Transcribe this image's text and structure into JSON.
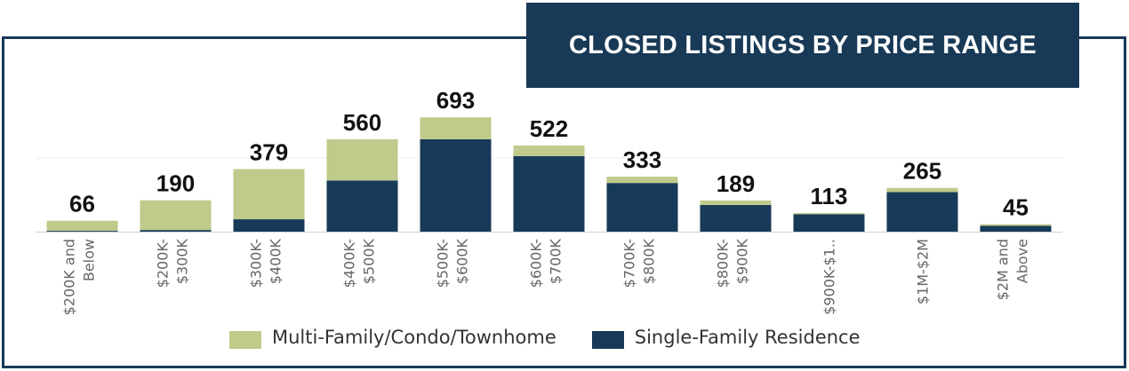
{
  "title": "CLOSED LISTINGS BY PRICE RANGE",
  "colors": {
    "frame": "#193a57",
    "multi": "#bfca8b",
    "single": "#163a58",
    "grid": "#eeeeee",
    "axis": "#d0d0d0",
    "label": "#666666"
  },
  "legend": [
    {
      "name": "Multi-Family/Condo/Townhome",
      "color": "#bfca8b"
    },
    {
      "name": "Single-Family Residence",
      "color": "#163a58"
    }
  ],
  "chart_data": {
    "type": "bar",
    "stacked": true,
    "title": "CLOSED LISTINGS BY PRICE RANGE",
    "categories": [
      [
        "$200K and",
        "Below"
      ],
      [
        "$200K-",
        "$300K"
      ],
      [
        "$300K-",
        "$400K"
      ],
      [
        "$400K-",
        "$500K"
      ],
      [
        "$500K-",
        "$600K"
      ],
      [
        "$600K-",
        "$700K"
      ],
      [
        "$700K-",
        "$800K"
      ],
      [
        "$800K-",
        "$900K"
      ],
      [
        "$900K-$1.."
      ],
      [
        "$1M-$2M"
      ],
      [
        "$2M and",
        "Above"
      ]
    ],
    "totals": [
      66,
      190,
      379,
      560,
      693,
      522,
      333,
      189,
      113,
      265,
      45
    ],
    "series": [
      {
        "name": "Single-Family Residence",
        "values": [
          5,
          10,
          75,
          310,
          560,
          458,
          295,
          162,
          105,
          240,
          35
        ]
      },
      {
        "name": "Multi-Family/Condo/Townhome",
        "values": [
          61,
          180,
          304,
          250,
          133,
          64,
          38,
          27,
          8,
          25,
          10
        ]
      }
    ],
    "ylim": [
      0,
      780
    ],
    "legend_position": "bottom"
  }
}
